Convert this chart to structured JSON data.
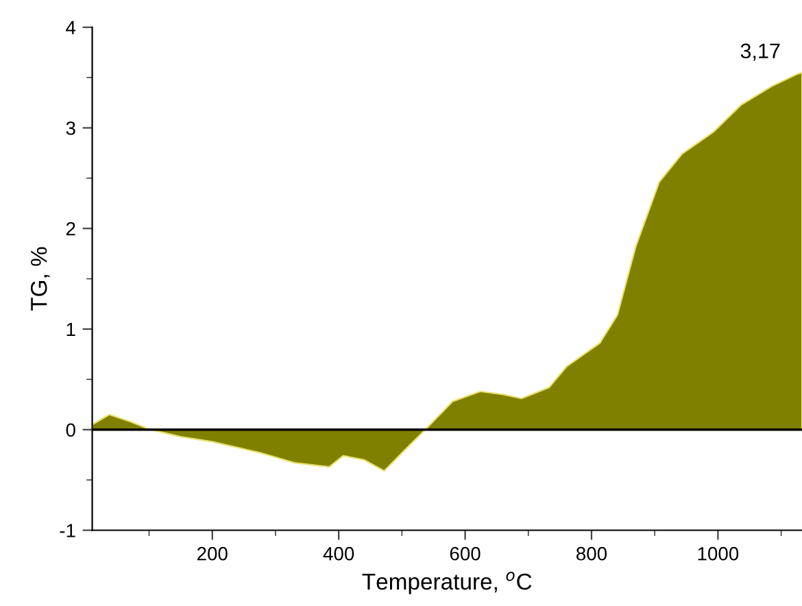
{
  "chart_data": {
    "type": "area",
    "xlabel": "Temperature, $^{o}$C",
    "ylabel": "TG, %",
    "x": [
      10,
      37,
      70,
      102,
      150,
      200,
      276,
      330,
      385,
      407,
      440,
      472,
      505,
      537,
      580,
      624,
      660,
      689,
      733,
      761,
      813,
      841,
      870,
      907,
      943,
      993,
      1037,
      1087,
      1124,
      1133
    ],
    "series": [
      {
        "color": "#808000",
        "values": [
          0.05,
          0.15,
          0.08,
          0,
          -0.07,
          -0.12,
          -0.23,
          -0.33,
          -0.37,
          -0.26,
          -0.3,
          -0.41,
          -0.2,
          0,
          0.28,
          0.38,
          0.35,
          0.31,
          0.42,
          0.63,
          0.86,
          1.14,
          1.82,
          2.46,
          2.74,
          2.96,
          3.23,
          3.42,
          3.53,
          3.55
        ]
      }
    ],
    "xlim": [
      10,
      1133
    ],
    "xticks": [
      200,
      400,
      600,
      800,
      1000
    ],
    "ylim": [
      -1,
      4
    ],
    "yticks": [
      -1,
      0,
      1,
      2,
      3,
      4
    ],
    "ref_lines": [
      {
        "axis": "y",
        "value": 0,
        "color": "#000000"
      }
    ],
    "annotations": [
      "3,17"
    ],
    "grid": false,
    "legend": false
  }
}
